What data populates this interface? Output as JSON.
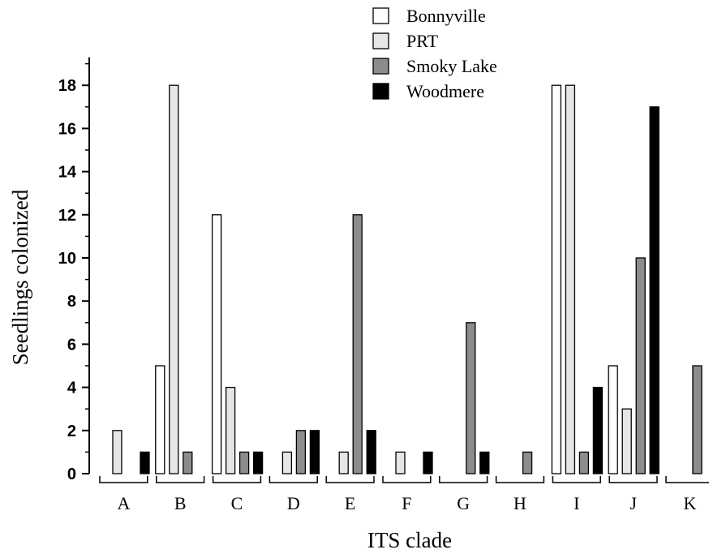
{
  "chart_data": {
    "type": "bar",
    "title": "",
    "xlabel": "ITS clade",
    "ylabel": "Seedlings colonized",
    "ylim": [
      0,
      19
    ],
    "yticks": [
      "0",
      "2",
      "4",
      "6",
      "8",
      "10",
      "12",
      "14",
      "16",
      "18"
    ],
    "categories": [
      "A",
      "B",
      "C",
      "D",
      "E",
      "F",
      "G",
      "H",
      "I",
      "J",
      "K"
    ],
    "series": [
      {
        "name": "Bonnyville",
        "color": "#ffffff",
        "values": [
          0,
          5,
          12,
          0,
          0,
          0,
          0,
          0,
          18,
          5,
          0
        ]
      },
      {
        "name": "PRT",
        "color": "#e6e6e6",
        "values": [
          2,
          18,
          4,
          1,
          1,
          1,
          0,
          0,
          18,
          3,
          0
        ]
      },
      {
        "name": "Smoky Lake",
        "color": "#8c8c8c",
        "values": [
          0,
          1,
          1,
          2,
          12,
          0,
          7,
          1,
          1,
          10,
          5
        ]
      },
      {
        "name": "Woodmere",
        "color": "#000000",
        "values": [
          1,
          0,
          1,
          2,
          2,
          1,
          1,
          0,
          4,
          17,
          0
        ]
      }
    ],
    "legend_position": "top-right",
    "grid": false
  }
}
